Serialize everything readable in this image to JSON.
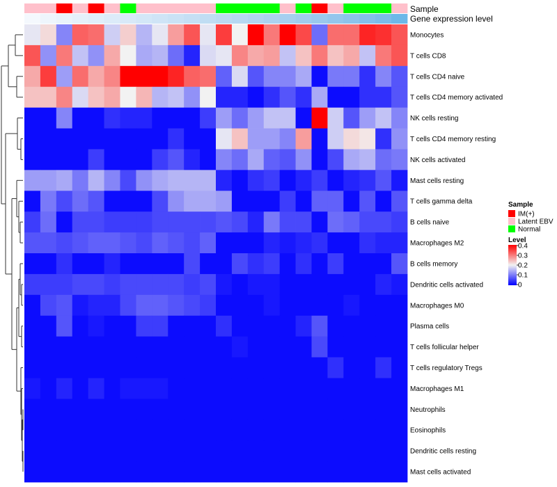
{
  "chart_data": {
    "type": "heatmap",
    "annotation_rows": {
      "sample_label": "Sample",
      "gene_label": "Gene expression level"
    },
    "columns": [
      {
        "sample": "Latent EBV",
        "gene_color": "#F4F8FD"
      },
      {
        "sample": "Latent EBV",
        "gene_color": "#EEF5FC"
      },
      {
        "sample": "IM(+)",
        "gene_color": "#E9F3FB"
      },
      {
        "sample": "Latent EBV",
        "gene_color": "#E5F0FA"
      },
      {
        "sample": "IM(+)",
        "gene_color": "#E0EEFA"
      },
      {
        "sample": "Latent EBV",
        "gene_color": "#DCEBF9"
      },
      {
        "sample": "Normal",
        "gene_color": "#D8E9F8"
      },
      {
        "sample": "Latent EBV",
        "gene_color": "#D3E7F7"
      },
      {
        "sample": "Latent EBV",
        "gene_color": "#CFE4F6"
      },
      {
        "sample": "Latent EBV",
        "gene_color": "#CAE2F5"
      },
      {
        "sample": "Latent EBV",
        "gene_color": "#C5DFF4"
      },
      {
        "sample": "Latent EBV",
        "gene_color": "#C0DDF3"
      },
      {
        "sample": "Normal",
        "gene_color": "#BBDAF2"
      },
      {
        "sample": "Normal",
        "gene_color": "#B6D8F2"
      },
      {
        "sample": "Normal",
        "gene_color": "#B1D5F1"
      },
      {
        "sample": "Normal",
        "gene_color": "#ACD2F0"
      },
      {
        "sample": "Latent EBV",
        "gene_color": "#A6CFEF"
      },
      {
        "sample": "Normal",
        "gene_color": "#A0CCEE"
      },
      {
        "sample": "IM(+)",
        "gene_color": "#9AC9ED"
      },
      {
        "sample": "Latent EBV",
        "gene_color": "#93C6EC"
      },
      {
        "sample": "Normal",
        "gene_color": "#8CC3EB"
      },
      {
        "sample": "Normal",
        "gene_color": "#84BFEA"
      },
      {
        "sample": "Normal",
        "gene_color": "#7BBCE9"
      },
      {
        "sample": "Latent EBV",
        "gene_color": "#6DB8E8"
      }
    ],
    "rows": [
      "Monocytes",
      "T cells CD8",
      "T cells CD4 naive",
      "T cells CD4 memory activated",
      "NK cells resting",
      "T cells CD4 memory resting",
      "NK cells activated",
      "Mast cells resting",
      "T cells gamma delta",
      "B cells naive",
      "Macrophages M2",
      "B cells memory",
      "Dendritic cells activated",
      "Macrophages M0",
      "Plasma cells",
      "T cells follicular helper",
      "T cells regulatory  Tregs",
      "Macrophages M1",
      "Neutrophils",
      "Eosinophils",
      "Dendritic cells resting",
      "Mast cells activated"
    ],
    "values": [
      [
        0.19,
        0.22,
        0.11,
        0.32,
        0.31,
        0.17,
        0.23,
        0.15,
        0.19,
        0.27,
        0.33,
        0.19,
        0.35,
        0.2,
        0.4,
        0.3,
        0.4,
        0.34,
        0.09,
        0.31,
        0.31,
        0.37,
        0.36,
        0.33
      ],
      [
        0.33,
        0.12,
        0.3,
        0.16,
        0.12,
        0.26,
        0.2,
        0.14,
        0.15,
        0.09,
        0.03,
        0.18,
        0.19,
        0.29,
        0.26,
        0.27,
        0.16,
        0.24,
        0.3,
        0.24,
        0.26,
        0.16,
        0.3,
        0.33
      ],
      [
        0.26,
        0.35,
        0.13,
        0.31,
        0.26,
        0.29,
        0.4,
        0.4,
        0.4,
        0.37,
        0.32,
        0.31,
        0.08,
        0.18,
        0.07,
        0.11,
        0.11,
        0.14,
        0.01,
        0.1,
        0.1,
        0.04,
        0.11,
        0.07
      ],
      [
        0.24,
        0.24,
        0.29,
        0.18,
        0.24,
        0.26,
        0.2,
        0.25,
        0.15,
        0.16,
        0.12,
        0.2,
        0.03,
        0.03,
        0.01,
        0.04,
        0.07,
        0.04,
        0.14,
        0.01,
        0.01,
        0.04,
        0.04,
        0.07
      ],
      [
        0.01,
        0.01,
        0.11,
        0.01,
        0.01,
        0.04,
        0.03,
        0.03,
        0.01,
        0.01,
        0.01,
        0.05,
        0.13,
        0.09,
        0.13,
        0.16,
        0.16,
        0.01,
        0.4,
        0.17,
        0.07,
        0.13,
        0.16,
        0.11
      ],
      [
        0.01,
        0.01,
        0.01,
        0.01,
        0.01,
        0.01,
        0.01,
        0.01,
        0.01,
        0.04,
        0.01,
        0.01,
        0.19,
        0.24,
        0.13,
        0.13,
        0.11,
        0.27,
        0.01,
        0.17,
        0.22,
        0.21,
        0.04,
        0.12
      ],
      [
        0.01,
        0.01,
        0.01,
        0.01,
        0.05,
        0.01,
        0.01,
        0.01,
        0.05,
        0.07,
        0.03,
        0.01,
        0.11,
        0.09,
        0.14,
        0.08,
        0.07,
        0.12,
        0.01,
        0.06,
        0.14,
        0.15,
        0.09,
        0.1
      ],
      [
        0.13,
        0.13,
        0.14,
        0.1,
        0.15,
        0.11,
        0.06,
        0.12,
        0.14,
        0.15,
        0.15,
        0.15,
        0.03,
        0.01,
        0.04,
        0.05,
        0.01,
        0.03,
        0.05,
        0.01,
        0.03,
        0.04,
        0.07,
        0.02
      ],
      [
        0.01,
        0.1,
        0.06,
        0.09,
        0.07,
        0.01,
        0.01,
        0.01,
        0.06,
        0.12,
        0.14,
        0.14,
        0.13,
        0.01,
        0.01,
        0.01,
        0.05,
        0.01,
        0.08,
        0.08,
        0.01,
        0.07,
        0.01,
        0.07
      ],
      [
        0.05,
        0.09,
        0.01,
        0.06,
        0.06,
        0.05,
        0.05,
        0.05,
        0.06,
        0.06,
        0.06,
        0.06,
        0.07,
        0.06,
        0.03,
        0.1,
        0.06,
        0.06,
        0.01,
        0.09,
        0.08,
        0.06,
        0.06,
        0.05
      ],
      [
        0.07,
        0.07,
        0.06,
        0.07,
        0.08,
        0.08,
        0.07,
        0.06,
        0.08,
        0.07,
        0.06,
        0.08,
        0.01,
        0.01,
        0.01,
        0.03,
        0.02,
        0.03,
        0.04,
        0.01,
        0.01,
        0.04,
        0.03,
        0.03
      ],
      [
        0.01,
        0.01,
        0.04,
        0.01,
        0.01,
        0.03,
        0.01,
        0.01,
        0.01,
        0.01,
        0.06,
        0.01,
        0.01,
        0.06,
        0.04,
        0.05,
        0.01,
        0.04,
        0.01,
        0.05,
        0.01,
        0.01,
        0.01,
        0.07
      ],
      [
        0.05,
        0.05,
        0.05,
        0.06,
        0.06,
        0.05,
        0.06,
        0.06,
        0.06,
        0.06,
        0.05,
        0.06,
        0.02,
        0.01,
        0.02,
        0.02,
        0.01,
        0.01,
        0.01,
        0.01,
        0.01,
        0.01,
        0.03,
        0.02
      ],
      [
        0.01,
        0.06,
        0.07,
        0.02,
        0.03,
        0.03,
        0.06,
        0.08,
        0.08,
        0.07,
        0.06,
        0.05,
        0.01,
        0.01,
        0.01,
        0.02,
        0.01,
        0.01,
        0.01,
        0.01,
        0.02,
        0.01,
        0.01,
        0.01
      ],
      [
        0.01,
        0.01,
        0.07,
        0.01,
        0.02,
        0.01,
        0.01,
        0.05,
        0.05,
        0.01,
        0.01,
        0.01,
        0.04,
        0.01,
        0.01,
        0.01,
        0.01,
        0.03,
        0.07,
        0.01,
        0.01,
        0.01,
        0.01,
        0.01
      ],
      [
        0.01,
        0.01,
        0.01,
        0.01,
        0.01,
        0.01,
        0.01,
        0.01,
        0.01,
        0.01,
        0.01,
        0.01,
        0.01,
        0.02,
        0.01,
        0.01,
        0.01,
        0.01,
        0.06,
        0.01,
        0.01,
        0.01,
        0.01,
        0.01
      ],
      [
        0.01,
        0.01,
        0.01,
        0.01,
        0.01,
        0.01,
        0.01,
        0.01,
        0.01,
        0.01,
        0.01,
        0.01,
        0.01,
        0.01,
        0.01,
        0.01,
        0.01,
        0.01,
        0.01,
        0.04,
        0.01,
        0.01,
        0.04,
        0.01
      ],
      [
        0.02,
        0.01,
        0.03,
        0.01,
        0.03,
        0.01,
        0.02,
        0.02,
        0.02,
        0.01,
        0.01,
        0.01,
        0.01,
        0.01,
        0.01,
        0.01,
        0.01,
        0.01,
        0.01,
        0.01,
        0.01,
        0.01,
        0.01,
        0.01
      ],
      [
        0.01,
        0.01,
        0.01,
        0.01,
        0.01,
        0.01,
        0.01,
        0.01,
        0.01,
        0.01,
        0.01,
        0.01,
        0.01,
        0.01,
        0.01,
        0.01,
        0.01,
        0.01,
        0.01,
        0.01,
        0.01,
        0.01,
        0.01,
        0.01
      ],
      [
        0.01,
        0.01,
        0.01,
        0.01,
        0.01,
        0.01,
        0.01,
        0.01,
        0.01,
        0.01,
        0.01,
        0.01,
        0.01,
        0.01,
        0.01,
        0.01,
        0.01,
        0.01,
        0.01,
        0.01,
        0.01,
        0.01,
        0.01,
        0.01
      ],
      [
        0.01,
        0.01,
        0.01,
        0.01,
        0.01,
        0.01,
        0.01,
        0.01,
        0.01,
        0.01,
        0.01,
        0.01,
        0.01,
        0.01,
        0.01,
        0.01,
        0.01,
        0.01,
        0.01,
        0.01,
        0.01,
        0.01,
        0.01,
        0.01
      ],
      [
        0.01,
        0.01,
        0.01,
        0.01,
        0.01,
        0.01,
        0.01,
        0.01,
        0.01,
        0.01,
        0.01,
        0.01,
        0.01,
        0.01,
        0.01,
        0.01,
        0.01,
        0.01,
        0.01,
        0.01,
        0.01,
        0.01,
        0.01,
        0.01
      ]
    ],
    "color_scale": {
      "stops": [
        {
          "value": 0.0,
          "color": "#0000FF"
        },
        {
          "value": 0.2,
          "color": "#F2F2F2"
        },
        {
          "value": 0.4,
          "color": "#FF0000"
        }
      ]
    },
    "legend": {
      "sample_title": "Sample",
      "sample_entries": [
        {
          "label": "IM(+)",
          "color": "#FF0000"
        },
        {
          "label": "Latent EBV",
          "color": "#FFC0CB"
        },
        {
          "label": "Normal",
          "color": "#00FF00"
        }
      ],
      "level_title": "Level",
      "level_ticks": [
        "0.4",
        "0.3",
        "0.2",
        "0.1",
        "0"
      ],
      "position": "right"
    },
    "dendrogram": "rows",
    "grid": false
  }
}
